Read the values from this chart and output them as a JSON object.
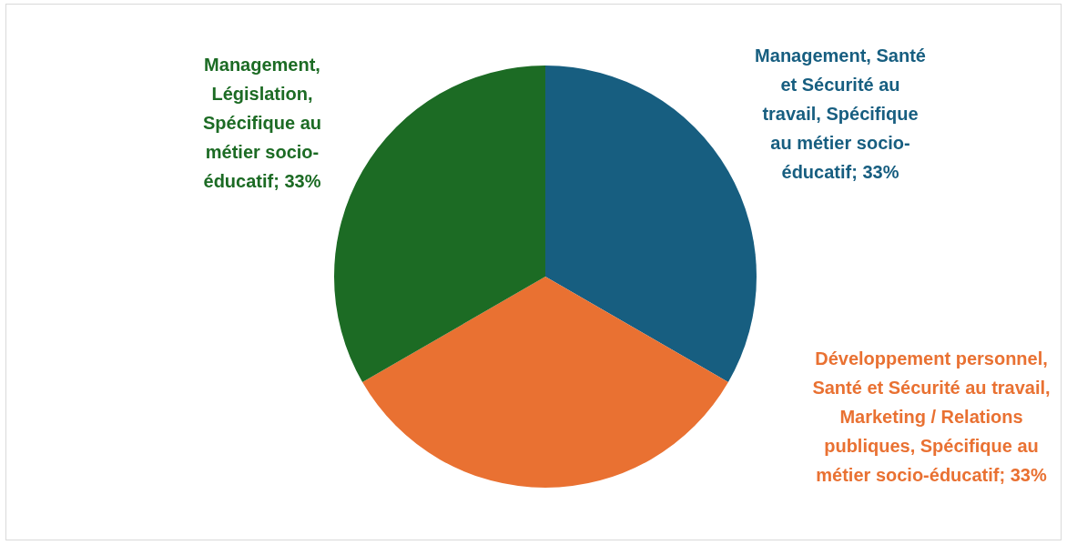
{
  "chart_data": {
    "type": "pie",
    "categories": [
      "Management, Santé et Sécurité au travail, Spécifique au métier socio-éducatif",
      "Développement personnel, Santé et Sécurité au travail, Marketing / Relations publiques, Spécifique au métier socio-éducatif",
      "Management, Législation, Spécifique au métier socio-éducatif"
    ],
    "values": [
      33,
      33,
      33
    ],
    "value_labels": [
      "33%",
      "33%",
      "33%"
    ],
    "colors": [
      "#175e80",
      "#e97132",
      "#1c6b24"
    ],
    "legend": false
  }
}
